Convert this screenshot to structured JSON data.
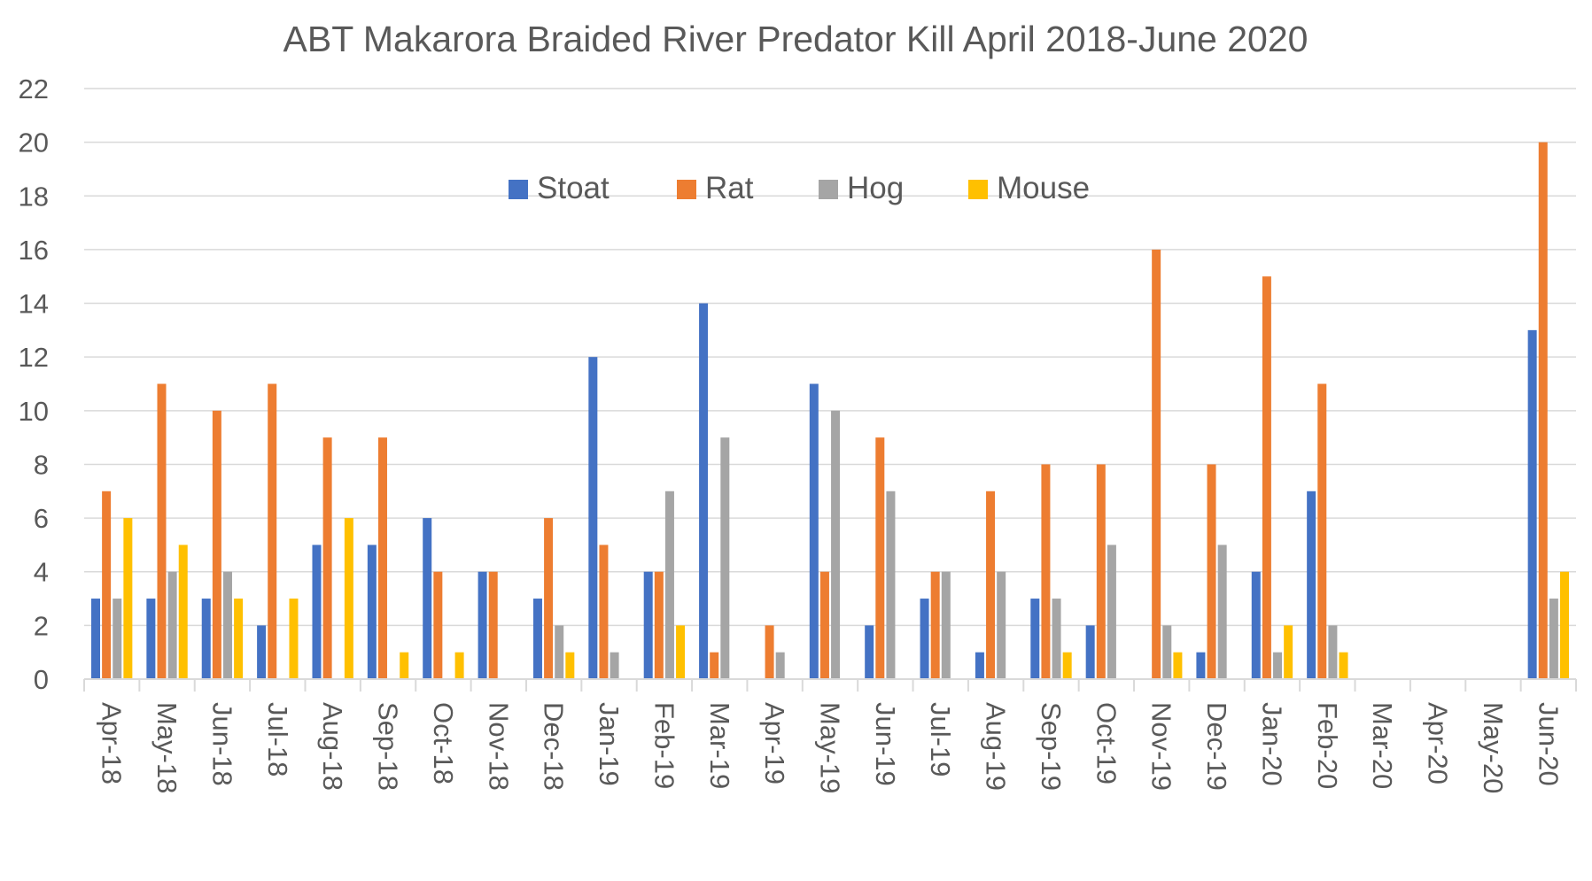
{
  "chart_data": {
    "type": "bar",
    "title": "ABT Makarora Braided River Predator Kill April 2018-June 2020",
    "xlabel": "",
    "ylabel": "",
    "ylim": [
      0,
      22
    ],
    "yticks": [
      0,
      2,
      4,
      6,
      8,
      10,
      12,
      14,
      16,
      18,
      20,
      22
    ],
    "grid": true,
    "legend_position": "top-center",
    "categories": [
      "Apr-18",
      "May-18",
      "Jun-18",
      "Jul-18",
      "Aug-18",
      "Sep-18",
      "Oct-18",
      "Nov-18",
      "Dec-18",
      "Jan-19",
      "Feb-19",
      "Mar-19",
      "Apr-19",
      "May-19",
      "Jun-19",
      "Jul-19",
      "Aug-19",
      "Sep-19",
      "Oct-19",
      "Nov-19",
      "Dec-19",
      "Jan-20",
      "Feb-20",
      "Mar-20",
      "Apr-20",
      "May-20",
      "Jun-20"
    ],
    "series": [
      {
        "name": "Stoat",
        "color": "#4472C4",
        "values": [
          3,
          3,
          3,
          2,
          5,
          5,
          6,
          4,
          3,
          12,
          4,
          14,
          0,
          11,
          2,
          3,
          1,
          3,
          2,
          0,
          1,
          4,
          7,
          0,
          0,
          0,
          13
        ]
      },
      {
        "name": "Rat",
        "color": "#ED7D31",
        "values": [
          7,
          11,
          10,
          11,
          9,
          9,
          4,
          4,
          6,
          5,
          4,
          1,
          2,
          4,
          9,
          4,
          7,
          8,
          8,
          16,
          8,
          15,
          11,
          0,
          0,
          0,
          20
        ]
      },
      {
        "name": "Hog",
        "color": "#A5A5A5",
        "values": [
          3,
          4,
          4,
          0,
          0,
          0,
          0,
          0,
          2,
          1,
          7,
          9,
          1,
          10,
          7,
          4,
          4,
          3,
          5,
          2,
          5,
          1,
          2,
          0,
          0,
          0,
          3
        ]
      },
      {
        "name": "Mouse",
        "color": "#FFC000",
        "values": [
          6,
          5,
          3,
          3,
          6,
          1,
          1,
          0,
          1,
          0,
          2,
          0,
          0,
          0,
          0,
          0,
          0,
          1,
          0,
          1,
          0,
          2,
          1,
          0,
          0,
          0,
          4
        ]
      }
    ]
  }
}
